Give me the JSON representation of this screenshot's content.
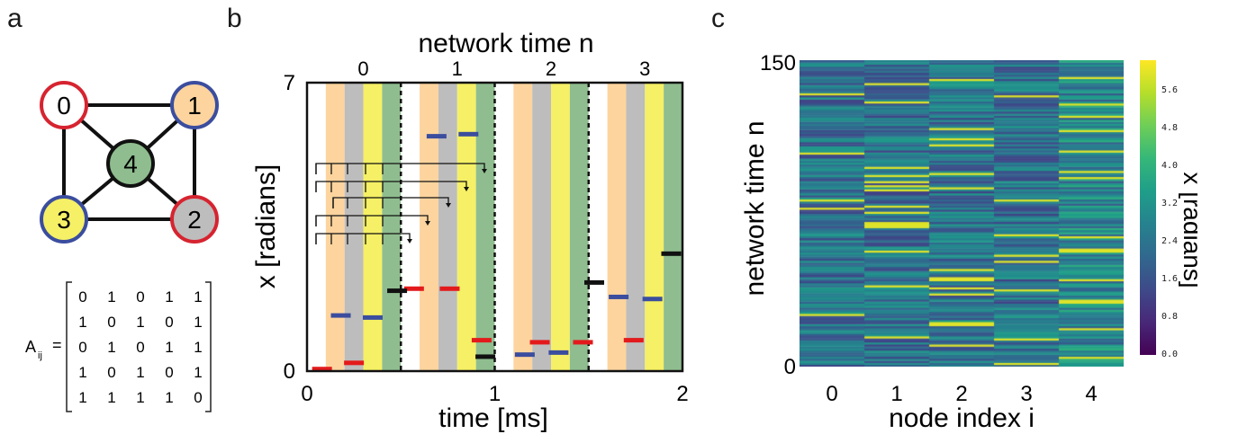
{
  "panels": {
    "a": {
      "letter": "a",
      "nodes": [
        {
          "label": "0",
          "fill": "#ffffff",
          "stroke": "#d62430"
        },
        {
          "label": "1",
          "fill": "#fdd49e",
          "stroke": "#3b4d9e"
        },
        {
          "label": "2",
          "fill": "#bdbdbd",
          "stroke": "#d62430"
        },
        {
          "label": "3",
          "fill": "#f5f065",
          "stroke": "#3b4d9e"
        },
        {
          "label": "4",
          "fill": "#8fbd8f",
          "stroke": "#111111"
        }
      ],
      "edges": [
        [
          0,
          1
        ],
        [
          0,
          3
        ],
        [
          0,
          4
        ],
        [
          1,
          2
        ],
        [
          1,
          4
        ],
        [
          2,
          3
        ],
        [
          2,
          4
        ],
        [
          3,
          4
        ]
      ],
      "matrix_label": "A",
      "matrix_subscript": "ij",
      "matrix": [
        [
          0,
          1,
          0,
          1,
          1
        ],
        [
          1,
          0,
          1,
          0,
          1
        ],
        [
          0,
          1,
          0,
          1,
          1
        ],
        [
          1,
          0,
          1,
          0,
          1
        ],
        [
          1,
          1,
          1,
          1,
          0
        ]
      ]
    },
    "b": {
      "letter": "b",
      "top_axis_label": "network time n",
      "top_ticks": [
        "0",
        "1",
        "2",
        "3"
      ],
      "xlabel": "time [ms]",
      "ylabel": "x [radians]",
      "xticks": [
        "0",
        "1",
        "2"
      ],
      "yticks": [
        "0",
        "7"
      ],
      "colors": {
        "node1": "#fdd49e",
        "node2": "#bdbdbd",
        "node3": "#f5f065",
        "node4": "#8fbd8f",
        "red": "#e31a1c",
        "blue": "#3b4d9e",
        "black": "#111111"
      }
    },
    "c": {
      "letter": "c",
      "xlabel": "node index i",
      "ylabel": "network time n",
      "xticks": [
        "0",
        "1",
        "2",
        "3",
        "4"
      ],
      "yticks": [
        "0",
        "150"
      ],
      "colorbar_label": "x [radians]",
      "colorbar_ticks": [
        "0.0",
        "0.8",
        "1.6",
        "2.4",
        "3.2",
        "4.0",
        "4.8",
        "5.6"
      ]
    }
  },
  "chart_data": {
    "type": "scatter",
    "xlim": [
      0,
      2
    ],
    "ylim": [
      0,
      7
    ],
    "xlabel": "time [ms]",
    "ylabel": "x [radians]",
    "series": [
      {
        "values": [
          [
            0.08,
            0.05
          ],
          [
            0.25,
            0.2
          ],
          [
            0.57,
            2.0
          ],
          [
            0.76,
            2.0
          ],
          [
            0.93,
            0.75
          ],
          [
            1.24,
            0.7
          ],
          [
            1.47,
            0.7
          ],
          [
            1.74,
            0.75
          ]
        ]
      },
      {
        "values": [
          [
            0.18,
            1.35
          ],
          [
            0.35,
            1.3
          ],
          [
            0.69,
            5.7
          ],
          [
            0.86,
            5.75
          ],
          [
            1.16,
            0.4
          ],
          [
            1.34,
            0.45
          ],
          [
            1.66,
            1.8
          ],
          [
            1.84,
            1.75
          ]
        ]
      },
      {
        "values": [
          [
            0.48,
            1.95
          ],
          [
            0.95,
            0.35
          ],
          [
            1.53,
            2.15
          ],
          [
            1.94,
            2.85
          ]
        ]
      }
    ]
  }
}
